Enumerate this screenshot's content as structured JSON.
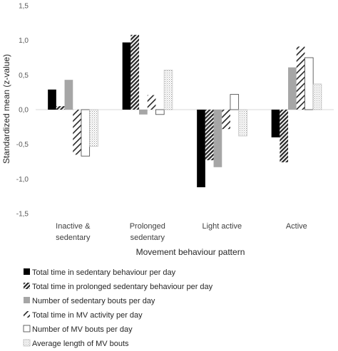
{
  "chart_data": {
    "type": "bar",
    "ylabel": "Standardized mean (z-value)",
    "xlabel": "Movement behaviour pattern",
    "ylim": [
      -1.5,
      1.5
    ],
    "yticks": [
      "-1,5",
      "-1,0",
      "-0,5",
      "0,0",
      "0,5",
      "1,0",
      "1,5"
    ],
    "ytick_values": [
      -1.5,
      -1.0,
      -0.5,
      0.0,
      0.5,
      1.0,
      1.5
    ],
    "categories": [
      [
        "Inactive &",
        "sedentary"
      ],
      [
        "Prolonged",
        "sedentary"
      ],
      [
        "Light active"
      ],
      [
        "Active"
      ]
    ],
    "grid": false,
    "legend_placement": "bottom",
    "series": [
      {
        "name": "Total time in sedentary behaviour per day",
        "pattern": "solid",
        "values": [
          0.29,
          0.97,
          -1.12,
          -0.4
        ]
      },
      {
        "name": "Total time in prolonged sedentary behaviour per day",
        "pattern": "dense-diagonal",
        "values": [
          0.05,
          1.08,
          -0.73,
          -0.76
        ]
      },
      {
        "name": "Number of sedentary bouts per day",
        "pattern": "gray",
        "values": [
          0.43,
          -0.07,
          -0.83,
          0.61
        ]
      },
      {
        "name": "Total time in MV activity per day",
        "pattern": "wide-diagonal",
        "values": [
          -0.65,
          0.21,
          -0.28,
          0.91
        ]
      },
      {
        "name": "Number of MV bouts per day",
        "pattern": "white",
        "values": [
          -0.67,
          -0.07,
          0.22,
          0.75
        ]
      },
      {
        "name": "Average length of MV bouts",
        "pattern": "dotted",
        "values": [
          -0.53,
          0.57,
          -0.38,
          0.37
        ]
      }
    ]
  }
}
